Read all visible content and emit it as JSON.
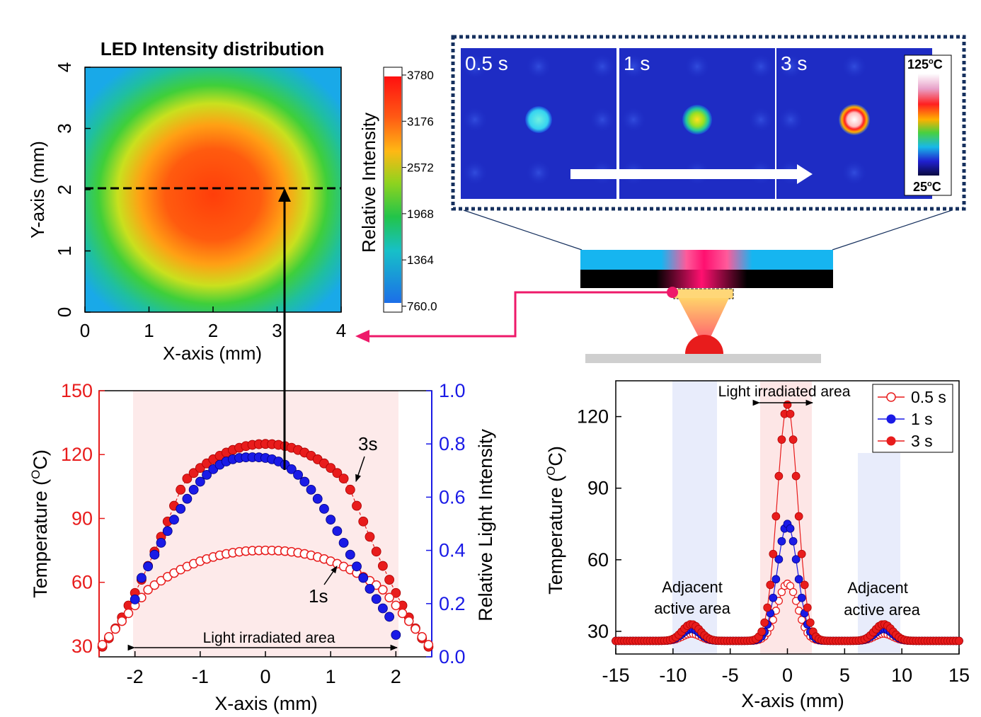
{
  "heatmap": {
    "title": "LED Intensity distribution",
    "xlabel": "X-axis (mm)",
    "ylabel": "Y-axis (mm)",
    "xticks": [
      "0",
      "1",
      "2",
      "3",
      "4"
    ],
    "yticks": [
      "0",
      "1",
      "2",
      "3",
      "4"
    ]
  },
  "colorbar": {
    "label": "Relative Intensity",
    "ticks": [
      "3780",
      "3176",
      "2572",
      "1968",
      "1364",
      "760.0"
    ]
  },
  "thermal": {
    "frames": [
      "0.5 s",
      "1 s",
      "3 s"
    ],
    "scale_max": "125",
    "scale_min": "25",
    "scale_unit": "C",
    "scale_sup": "o"
  },
  "chart_data": [
    {
      "type": "heatmap",
      "title": "LED Intensity distribution",
      "xlabel": "X-axis (mm)",
      "ylabel": "Y-axis (mm)",
      "xlim": [
        0,
        4
      ],
      "ylim": [
        0,
        4
      ],
      "colorbar": {
        "label": "Relative Intensity",
        "min": 760.0,
        "max": 3780
      },
      "annotation": "dashed line at Y = 2 mm"
    },
    {
      "type": "scatter",
      "xlabel": "X-axis (mm)",
      "ylabel": "Temperature (OC)",
      "ylabel_right": "Relative Light Intensity",
      "xlim": [
        -2.6,
        2.6
      ],
      "ylim": [
        25,
        150
      ],
      "ylim_right": [
        0.0,
        1.0
      ],
      "xticks": [
        "-2",
        "-1",
        "0",
        "1",
        "2"
      ],
      "yticks": [
        "30",
        "60",
        "90",
        "120",
        "150"
      ],
      "yticks_right": [
        "0.0",
        "0.2",
        "0.4",
        "0.6",
        "0.8",
        "1.0"
      ],
      "annotations": [
        "3s",
        "1s",
        "Light irradiated area"
      ],
      "series": [
        {
          "name": "3s",
          "axis": "left",
          "color": "#e81c1c",
          "marker": "filled",
          "peak": 125,
          "edge": 27
        },
        {
          "name": "1s",
          "axis": "left",
          "color": "#e81c1c",
          "marker": "open",
          "peak": 75,
          "edge": 27
        },
        {
          "axis": "right",
          "color": "#1a1ae6",
          "marker": "filled",
          "peak": 0.75,
          "x_range": [
            -2,
            2
          ]
        }
      ]
    },
    {
      "type": "line",
      "xlabel": "X-axis (mm)",
      "ylabel": "Temperature (OC)",
      "xlim": [
        -15,
        15
      ],
      "ylim": [
        22,
        135
      ],
      "xticks": [
        "-15",
        "-10",
        "-5",
        "0",
        "5",
        "10",
        "15"
      ],
      "yticks": [
        "30",
        "60",
        "90",
        "120"
      ],
      "annotations": [
        "Light irradiated area",
        "Adjacent active area",
        "Adjacent active area"
      ],
      "legend": "top-right",
      "series": [
        {
          "name": "0.5 s",
          "color": "#e81c1c",
          "marker": "open",
          "peak": 50,
          "side_peak": 29
        },
        {
          "name": "1 s",
          "color": "#1a1ae6",
          "marker": "filled",
          "peak": 75,
          "side_peak": 31
        },
        {
          "name": "3 s",
          "color": "#e81c1c",
          "marker": "filled",
          "peak": 125,
          "side_peak": 33
        }
      ]
    }
  ],
  "bottom_left": {
    "xlabel": "X-axis (mm)",
    "ylabel_left": "Temperature (",
    "ylabel_left_sup": "O",
    "ylabel_left_end": "C)",
    "ylabel_right": "Relative Light Intensity",
    "xticks": [
      "-2",
      "-1",
      "0",
      "1",
      "2"
    ],
    "yticks_left": [
      "30",
      "60",
      "90",
      "120",
      "150"
    ],
    "yticks_right": [
      "0.0",
      "0.2",
      "0.4",
      "0.6",
      "0.8",
      "1.0"
    ],
    "label_3s": "3s",
    "label_1s": "1s",
    "area_label": "Light irradiated area"
  },
  "bottom_right": {
    "xlabel": "X-axis (mm)",
    "ylabel": "Temperature (",
    "ylabel_sup": "O",
    "ylabel_end": "C)",
    "xticks": [
      "-15",
      "-10",
      "-5",
      "0",
      "5",
      "10",
      "15"
    ],
    "yticks": [
      "30",
      "60",
      "90",
      "120"
    ],
    "area_label": "Light irradiated area",
    "adj_line1": "Adjacent",
    "adj_line2": "active area",
    "legend": [
      "0.5 s",
      "1 s",
      "3 s"
    ]
  }
}
